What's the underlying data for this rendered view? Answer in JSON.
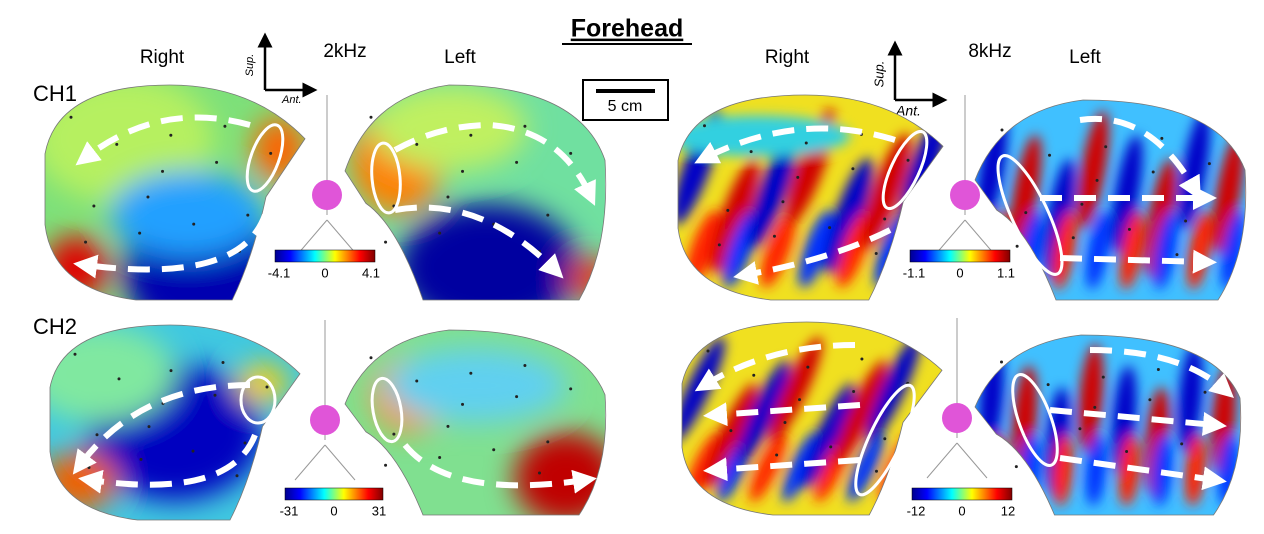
{
  "title": "Forehead",
  "scale_bar": "5 cm",
  "direction": {
    "sup": "Sup.",
    "ant": "Ant."
  },
  "columns": [
    {
      "frequency": "2kHz",
      "right": "Right",
      "left": "Left"
    },
    {
      "frequency": "8kHz",
      "right": "Right",
      "left": "Left"
    }
  ],
  "rows": [
    "CH1",
    "CH2"
  ],
  "colorbars": [
    {
      "min": -4.1,
      "mid": 0,
      "max": 4.1
    },
    {
      "min": -1.1,
      "mid": 0,
      "max": 1.1
    },
    {
      "min": -31,
      "mid": 0,
      "max": 31
    },
    {
      "min": -12,
      "mid": 0,
      "max": 12
    }
  ]
}
